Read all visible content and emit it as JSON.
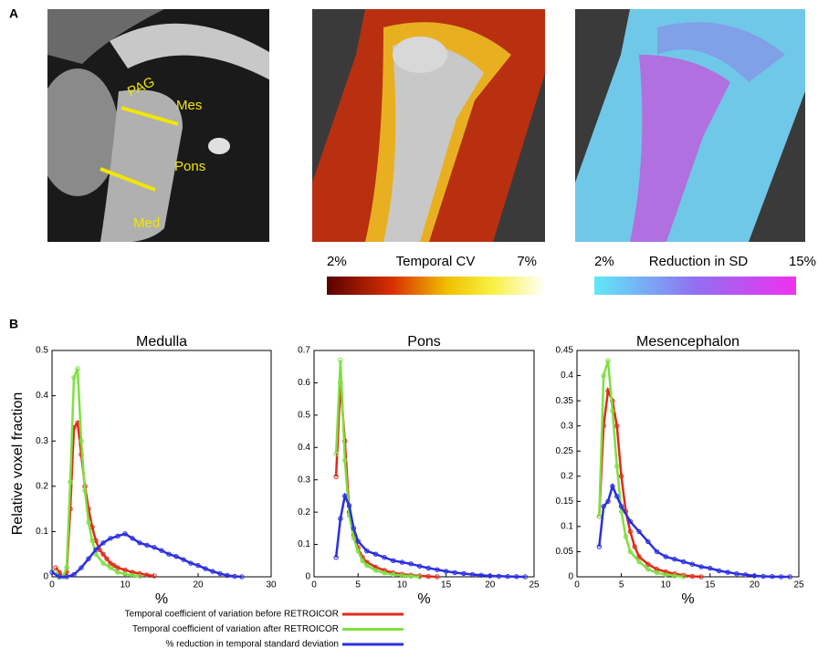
{
  "panel_a": {
    "label": "A",
    "annotations": [
      "PAG",
      "Mes",
      "Pons",
      "Med"
    ],
    "colorbar_cv": {
      "min": "2%",
      "title": "Temporal CV",
      "max": "7%"
    },
    "colorbar_sd": {
      "min": "2%",
      "title": "Reduction in SD",
      "max": "15%"
    }
  },
  "panel_b": {
    "label": "B"
  },
  "chart_data": [
    {
      "type": "line",
      "title": "Medulla",
      "xlabel": "%",
      "ylabel": "Relative voxel fraction",
      "xlim": [
        0,
        30
      ],
      "xticks": [
        0,
        10,
        20,
        30
      ],
      "ylim": [
        0,
        0.5
      ],
      "yticks": [
        0,
        0.1,
        0.2,
        0.3,
        0.4,
        0.5
      ],
      "series": [
        {
          "name": "Temporal coefficient of variation before RETROICOR",
          "color": "#e02a1a",
          "x": [
            0.5,
            1,
            1.5,
            2,
            2.5,
            3,
            3.5,
            4,
            4.5,
            5,
            5.5,
            6,
            6.5,
            7,
            7.5,
            8,
            8.5,
            9,
            10,
            11,
            12,
            13,
            14
          ],
          "values": [
            0.02,
            0.01,
            0,
            0.01,
            0.15,
            0.33,
            0.34,
            0.27,
            0.2,
            0.15,
            0.11,
            0.08,
            0.06,
            0.05,
            0.04,
            0.03,
            0.025,
            0.02,
            0.015,
            0.01,
            0.007,
            0.004,
            0.002
          ]
        },
        {
          "name": "Temporal coefficient of variation after RETROICOR",
          "color": "#7ee040",
          "x": [
            0.5,
            1,
            1.5,
            2,
            2.5,
            3,
            3.5,
            4,
            4.5,
            5,
            5.5,
            6,
            7,
            8,
            9,
            10,
            11,
            12
          ],
          "values": [
            0.01,
            0,
            0,
            0.02,
            0.21,
            0.44,
            0.46,
            0.3,
            0.19,
            0.12,
            0.08,
            0.05,
            0.03,
            0.02,
            0.01,
            0.006,
            0.003,
            0.001
          ]
        },
        {
          "name": "% reduction in temporal standard deviation",
          "color": "#2a2ee0",
          "x": [
            0,
            1,
            2,
            3,
            4,
            5,
            6,
            7,
            8,
            9,
            10,
            11,
            12,
            13,
            14,
            15,
            16,
            17,
            18,
            19,
            20,
            21,
            22,
            23,
            24,
            25,
            26
          ],
          "values": [
            0.01,
            0,
            0,
            0.005,
            0.02,
            0.04,
            0.06,
            0.075,
            0.085,
            0.09,
            0.095,
            0.085,
            0.075,
            0.07,
            0.065,
            0.058,
            0.05,
            0.045,
            0.038,
            0.03,
            0.025,
            0.018,
            0.012,
            0.007,
            0.003,
            0.001,
            0
          ]
        }
      ]
    },
    {
      "type": "line",
      "title": "Pons",
      "xlabel": "%",
      "xlim": [
        0,
        25
      ],
      "xticks": [
        0,
        5,
        10,
        15,
        20,
        25
      ],
      "ylim": [
        0,
        0.7
      ],
      "yticks": [
        0,
        0.1,
        0.2,
        0.3,
        0.4,
        0.5,
        0.6,
        0.7
      ],
      "series": [
        {
          "color": "#e02a1a",
          "x": [
            2.5,
            3,
            3.5,
            4,
            4.5,
            5,
            5.5,
            6,
            7,
            8,
            9,
            10,
            11,
            12,
            13,
            14
          ],
          "values": [
            0.31,
            0.6,
            0.42,
            0.2,
            0.13,
            0.09,
            0.06,
            0.045,
            0.03,
            0.02,
            0.012,
            0.008,
            0.005,
            0.003,
            0.001,
            0
          ]
        },
        {
          "color": "#7ee040",
          "x": [
            2.5,
            3,
            3.5,
            4,
            4.5,
            5,
            5.5,
            6,
            7,
            8,
            9,
            10,
            11,
            12
          ],
          "values": [
            0.38,
            0.67,
            0.36,
            0.19,
            0.12,
            0.08,
            0.05,
            0.035,
            0.02,
            0.012,
            0.007,
            0.004,
            0.002,
            0
          ]
        },
        {
          "color": "#2a2ee0",
          "x": [
            2.5,
            3,
            3.5,
            4,
            4.5,
            5,
            6,
            7,
            8,
            9,
            10,
            11,
            12,
            13,
            14,
            15,
            16,
            17,
            18,
            19,
            20,
            21,
            22,
            23,
            24
          ],
          "values": [
            0.06,
            0.18,
            0.25,
            0.22,
            0.15,
            0.11,
            0.08,
            0.07,
            0.06,
            0.05,
            0.045,
            0.04,
            0.033,
            0.027,
            0.022,
            0.017,
            0.013,
            0.01,
            0.007,
            0.005,
            0.003,
            0.002,
            0.001,
            0.0005,
            0
          ]
        }
      ]
    },
    {
      "type": "line",
      "title": "Mesencephalon",
      "xlabel": "%",
      "xlim": [
        0,
        25
      ],
      "xticks": [
        0,
        5,
        10,
        15,
        20,
        25
      ],
      "ylim": [
        0,
        0.45
      ],
      "yticks": [
        0,
        0.05,
        0.1,
        0.15,
        0.2,
        0.25,
        0.3,
        0.35,
        0.4,
        0.45
      ],
      "series": [
        {
          "color": "#e02a1a",
          "x": [
            2.5,
            3,
            3.5,
            4,
            4.5,
            5,
            5.5,
            6,
            6.5,
            7,
            8,
            9,
            10,
            11,
            12,
            13,
            14
          ],
          "values": [
            0.12,
            0.3,
            0.37,
            0.35,
            0.3,
            0.2,
            0.13,
            0.09,
            0.06,
            0.04,
            0.025,
            0.015,
            0.01,
            0.006,
            0.003,
            0.001,
            0
          ]
        },
        {
          "color": "#7ee040",
          "x": [
            2.5,
            3,
            3.5,
            4,
            4.5,
            5,
            5.5,
            6,
            7,
            8,
            9,
            10,
            11,
            12
          ],
          "values": [
            0.12,
            0.4,
            0.43,
            0.33,
            0.22,
            0.13,
            0.08,
            0.05,
            0.03,
            0.015,
            0.008,
            0.004,
            0.002,
            0
          ]
        },
        {
          "color": "#2a2ee0",
          "x": [
            2.5,
            3,
            3.5,
            4,
            4.5,
            5,
            6,
            7,
            8,
            9,
            10,
            11,
            12,
            13,
            14,
            15,
            16,
            17,
            18,
            19,
            20,
            21,
            22,
            23,
            24
          ],
          "values": [
            0.06,
            0.14,
            0.15,
            0.18,
            0.16,
            0.14,
            0.11,
            0.09,
            0.07,
            0.05,
            0.04,
            0.035,
            0.03,
            0.025,
            0.02,
            0.017,
            0.012,
            0.009,
            0.006,
            0.004,
            0.002,
            0.001,
            0.0005,
            0,
            0
          ]
        }
      ]
    }
  ]
}
